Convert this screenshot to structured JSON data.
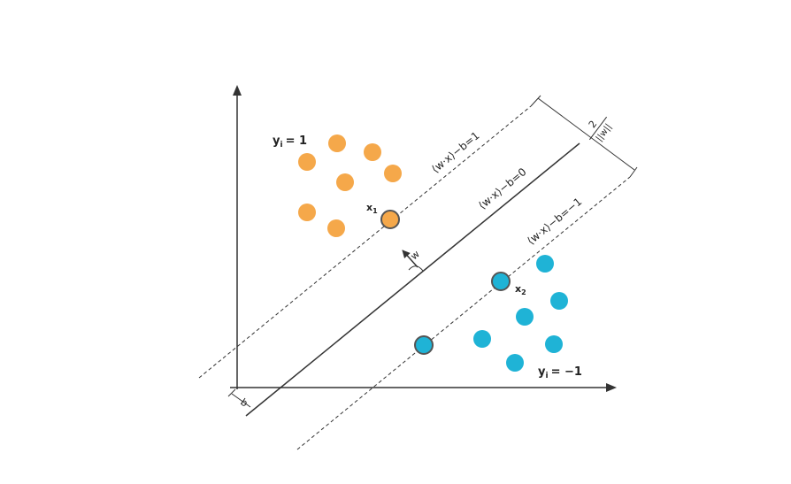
{
  "classes": {
    "positive": {
      "label": "y",
      "sub": "i",
      "value": "= 1",
      "color": "#f5a84a"
    },
    "negative": {
      "label": "y",
      "sub": "i",
      "value": "= −1",
      "color": "#1fb3d6"
    }
  },
  "hyperplanes": {
    "upper": "⟨w·x⟩−b=1",
    "middle": "⟨w·x⟩−b=0",
    "lower": "⟨w·x⟩−b=−1"
  },
  "margin": {
    "numerator": "2",
    "denominator": "||w||"
  },
  "normal": {
    "label": "w"
  },
  "support": {
    "x1": {
      "label": "x",
      "sub": "1"
    },
    "x2": {
      "label": "x",
      "sub": "2"
    }
  },
  "offset": {
    "label": "b"
  },
  "icons": [
    "y-axis-arrow-icon",
    "x-axis-arrow-icon",
    "normal-vector-arrow-icon"
  ]
}
